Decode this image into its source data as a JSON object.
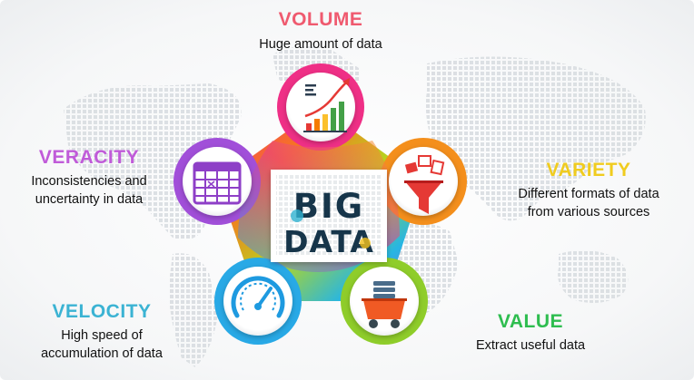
{
  "center": {
    "line1": "BIG",
    "line2": "DATA"
  },
  "vs": [
    {
      "title": "VOLUME",
      "desc": [
        "Huge amount of data"
      ],
      "color": "#ef5a6f",
      "icon": "bar-chart-growth-icon"
    },
    {
      "title": "VARIETY",
      "desc": [
        "Different formats of data",
        "from various sources"
      ],
      "color": "#f0cc1f",
      "icon": "funnel-icon"
    },
    {
      "title": "VALUE",
      "desc": [
        "Extract useful data"
      ],
      "color": "#2ebd4f",
      "icon": "mining-cart-icon"
    },
    {
      "title": "VELOCITY",
      "desc": [
        "High speed of",
        "accumulation of data"
      ],
      "color": "#3bb3d3",
      "icon": "speedometer-icon"
    },
    {
      "title": "VERACITY",
      "desc": [
        "Inconsistencies and",
        "uncertainty in data"
      ],
      "color": "#c05bd9",
      "icon": "calendar-grid-icon"
    }
  ],
  "colors": {
    "volume_ring": "#ef3f8e",
    "variety_ring": "#f6a21b",
    "value_ring": "#9ccc2b",
    "velocity_ring": "#2fa7e6",
    "veracity_ring": "#a44fd8"
  }
}
